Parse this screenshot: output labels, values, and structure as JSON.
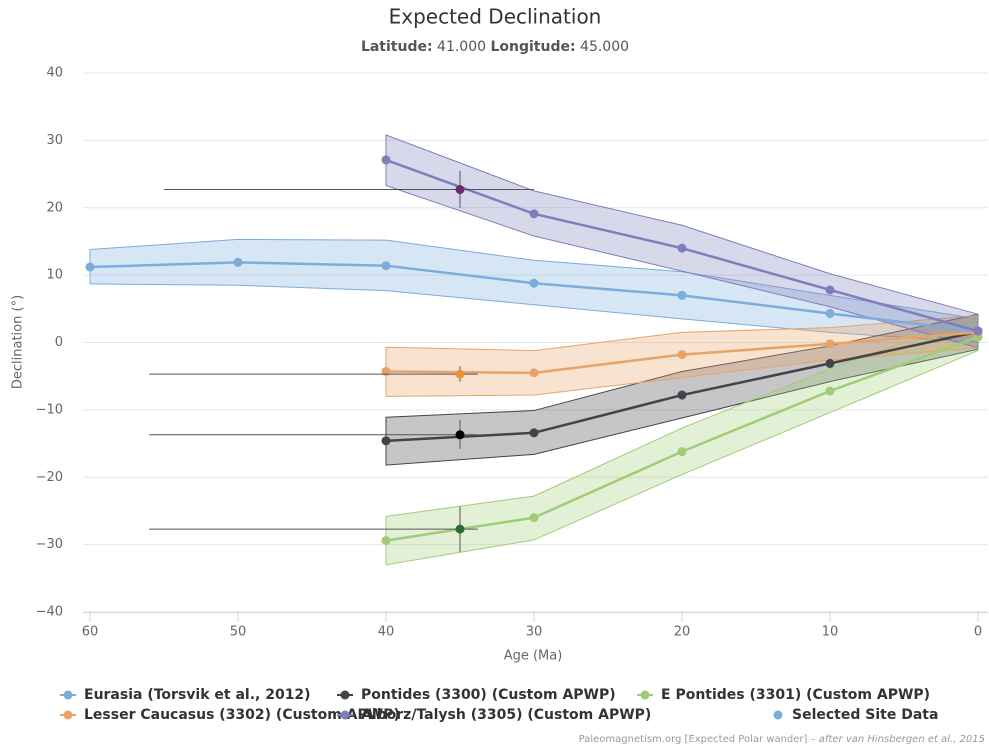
{
  "chart_data": {
    "type": "arearange-line",
    "title": "Expected Declination",
    "subtitle": {
      "lat_label": "Latitude:",
      "lat": "41.000",
      "lon_label": "Longitude:",
      "lon": "45.000"
    },
    "xlabel": "Age (Ma)",
    "ylabel": "Declination (°)",
    "credit": "Paleomagnetism.org [Expected Polar wander]",
    "credit_italic": "– after van Hinsbergen et al., 2015",
    "xlim": [
      60,
      0
    ],
    "xticks": [
      60,
      50,
      40,
      30,
      20,
      10,
      0
    ],
    "ylim": [
      -40,
      40
    ],
    "yticks": [
      {
        "value": -40,
        "label": "−40"
      },
      {
        "value": -30,
        "label": "−30"
      },
      {
        "value": -20,
        "label": "−20"
      },
      {
        "value": -10,
        "label": "−10"
      },
      0,
      10,
      20,
      30,
      40
    ],
    "grid": true,
    "legend": "bottom",
    "series": [
      {
        "name": "Eurasia (Torsvik et al., 2012)",
        "color": "#7cacdc",
        "x": [
          60,
          50,
          40,
          30,
          20,
          10,
          0
        ],
        "values": [
          11.2,
          11.9,
          11.4,
          8.8,
          7.0,
          4.3,
          1.7
        ],
        "high": [
          13.8,
          15.3,
          15.2,
          12.2,
          10.5,
          7.0,
          3.5
        ],
        "low": [
          8.7,
          8.5,
          7.7,
          5.6,
          3.5,
          1.5,
          0
        ]
      },
      {
        "name": "Pontides (3300) (Custom APWP)",
        "color": "#434348",
        "x": [
          40,
          30,
          20,
          10,
          0
        ],
        "values": [
          -14.6,
          -13.4,
          -7.8,
          -3.1,
          1.6
        ],
        "high": [
          -11.1,
          -10.1,
          -4.3,
          -0.5,
          4.2
        ],
        "low": [
          -18.2,
          -16.6,
          -11.2,
          -5.8,
          -1.0
        ]
      },
      {
        "name": "E Pontides (3301) (Custom APWP)",
        "color": "#a0cc78",
        "x": [
          40,
          30,
          20,
          10,
          0
        ],
        "values": [
          -29.4,
          -26.0,
          -16.2,
          -7.2,
          0.8
        ],
        "high": [
          -25.8,
          -22.8,
          -12.7,
          -3.9,
          4.0
        ],
        "low": [
          -33.0,
          -29.3,
          -19.6,
          -10.4,
          -1.2
        ]
      },
      {
        "name": "Lesser Caucasus (3302) (Custom APWP)",
        "color": "#e8a368",
        "x": [
          40,
          30,
          20,
          10,
          0
        ],
        "values": [
          -4.3,
          -4.5,
          -1.8,
          -0.2,
          1.5
        ],
        "high": [
          -0.7,
          -1.2,
          1.5,
          2.2,
          4.0
        ],
        "low": [
          -8.0,
          -7.8,
          -5.2,
          -2.6,
          -0.8
        ]
      },
      {
        "name": "Alborz/Talysh (3305) (Custom APWP)",
        "color": "#7f7ebc",
        "x": [
          40,
          30,
          20,
          10,
          0
        ],
        "values": [
          27.1,
          19.1,
          14.0,
          7.8,
          1.7
        ],
        "high": [
          30.8,
          22.5,
          17.4,
          10.2,
          4.2
        ],
        "low": [
          23.3,
          15.8,
          10.6,
          5.3,
          -0.8
        ]
      }
    ],
    "sites": {
      "name": "Selected Site Data",
      "color": "#7cacdc",
      "points": [
        {
          "x": 35,
          "y": 22.7,
          "x_low": 30,
          "x_high": 55,
          "y_low": 20.0,
          "y_high": 25.5,
          "color": "#6a2b6e"
        },
        {
          "x": 35,
          "y": -4.7,
          "x_low": 33.8,
          "x_high": 56,
          "y_low": -5.8,
          "y_high": -3.5,
          "color": "#e8953a"
        },
        {
          "x": 35,
          "y": -13.7,
          "x_low": 33.8,
          "x_high": 56,
          "y_low": -15.8,
          "y_high": -11.5,
          "color": "#000000"
        },
        {
          "x": 35,
          "y": -27.7,
          "x_low": 33.8,
          "x_high": 56,
          "y_low": -31.1,
          "y_high": -24.3,
          "color": "#2f6b36"
        }
      ]
    }
  }
}
